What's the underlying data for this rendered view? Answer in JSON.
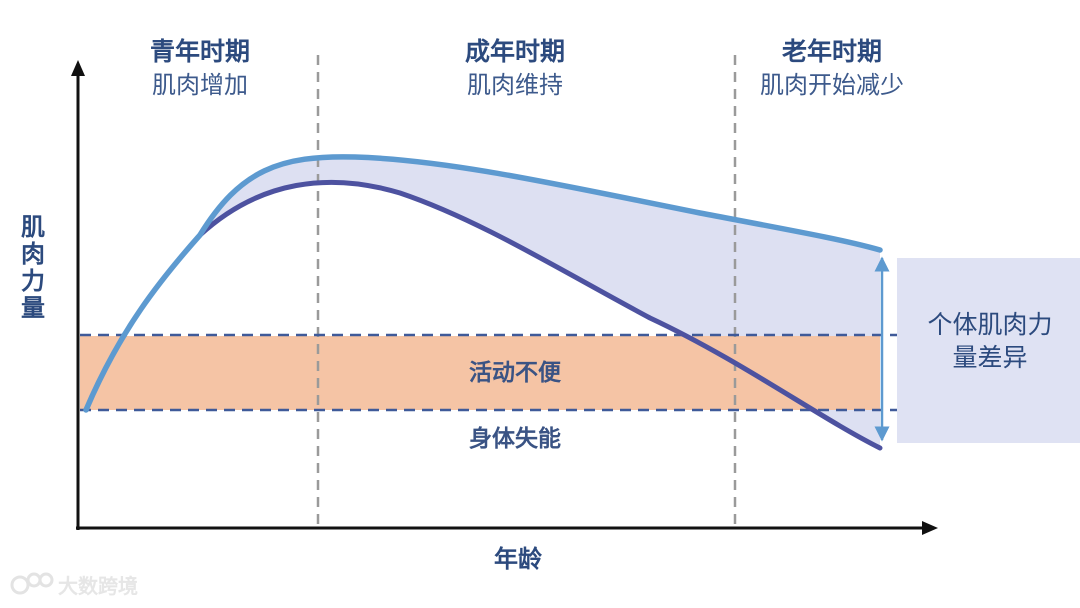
{
  "phases": [
    {
      "title": "青年时期",
      "subtitle": "肌肉增加"
    },
    {
      "title": "成年时期",
      "subtitle": "肌肉维持"
    },
    {
      "title": "老年时期",
      "subtitle": "肌肉开始减少"
    }
  ],
  "axes": {
    "y_label": [
      "肌",
      "肉",
      "力",
      "量"
    ],
    "x_label": "年龄"
  },
  "bands": {
    "mobility": "活动不便",
    "disability": "身体失能"
  },
  "difference_label": [
    "个体肌肉力",
    "量差异"
  ],
  "watermark": "大数跨境",
  "colors": {
    "upper_curve": "#5d9ad0",
    "lower_curve": "#4d52a0",
    "fill_between": "#dde0f2",
    "band": "#f5c4a5",
    "dashes": "#3f5a99",
    "side_box": "#dfe2f3",
    "arrow": "#5d9ad0",
    "text": "#2c4a7e"
  }
}
